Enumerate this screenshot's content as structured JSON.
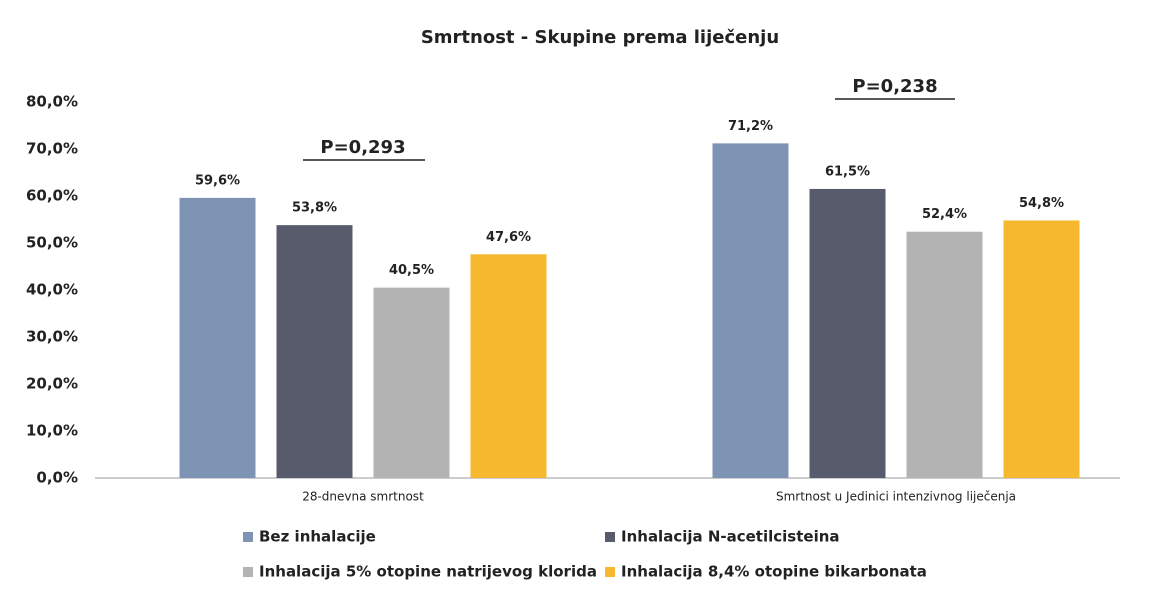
{
  "chart_data": {
    "type": "bar",
    "title": "Smrtnost - Skupine prema liječenju",
    "categories": [
      "28-dnevna smrtnost",
      "Smrtnost u Jedinici intenzivnog liječenja"
    ],
    "series": [
      {
        "name": "Bez inhalacije",
        "color": "#7f93b5",
        "values": [
          59.6,
          71.2
        ],
        "value_labels": [
          "59,6%",
          "71,2%"
        ]
      },
      {
        "name": "Inhalacija N-acetilcisteina",
        "color": "#575b6b",
        "values": [
          53.8,
          61.5
        ],
        "value_labels": [
          "53,8%",
          "61,5%"
        ]
      },
      {
        "name": "Inhalacija 5% otopine natrijevog klorida",
        "color": "#b3b3b3",
        "values": [
          40.5,
          52.4
        ],
        "value_labels": [
          "40,5%",
          "52,4%"
        ]
      },
      {
        "name": "Inhalacija 8,4% otopine bikarbonata",
        "color": "#f5b82e",
        "values": [
          47.6,
          54.8
        ],
        "value_labels": [
          "47,6%",
          "54,8%"
        ]
      }
    ],
    "annotations": [
      "P=0,293",
      "P=0,238"
    ],
    "ylim": [
      0,
      80
    ],
    "yticks": [
      {
        "value": 0,
        "label": "0,0%"
      },
      {
        "value": 10,
        "label": "10,0%"
      },
      {
        "value": 20,
        "label": "20,0%"
      },
      {
        "value": 30,
        "label": "30,0%"
      },
      {
        "value": 40,
        "label": "40,0%"
      },
      {
        "value": 50,
        "label": "50,0%"
      },
      {
        "value": 60,
        "label": "60,0%"
      },
      {
        "value": 70,
        "label": "70,0%"
      },
      {
        "value": 80,
        "label": "80,0%"
      }
    ],
    "grid": false,
    "legend": "bottom"
  }
}
